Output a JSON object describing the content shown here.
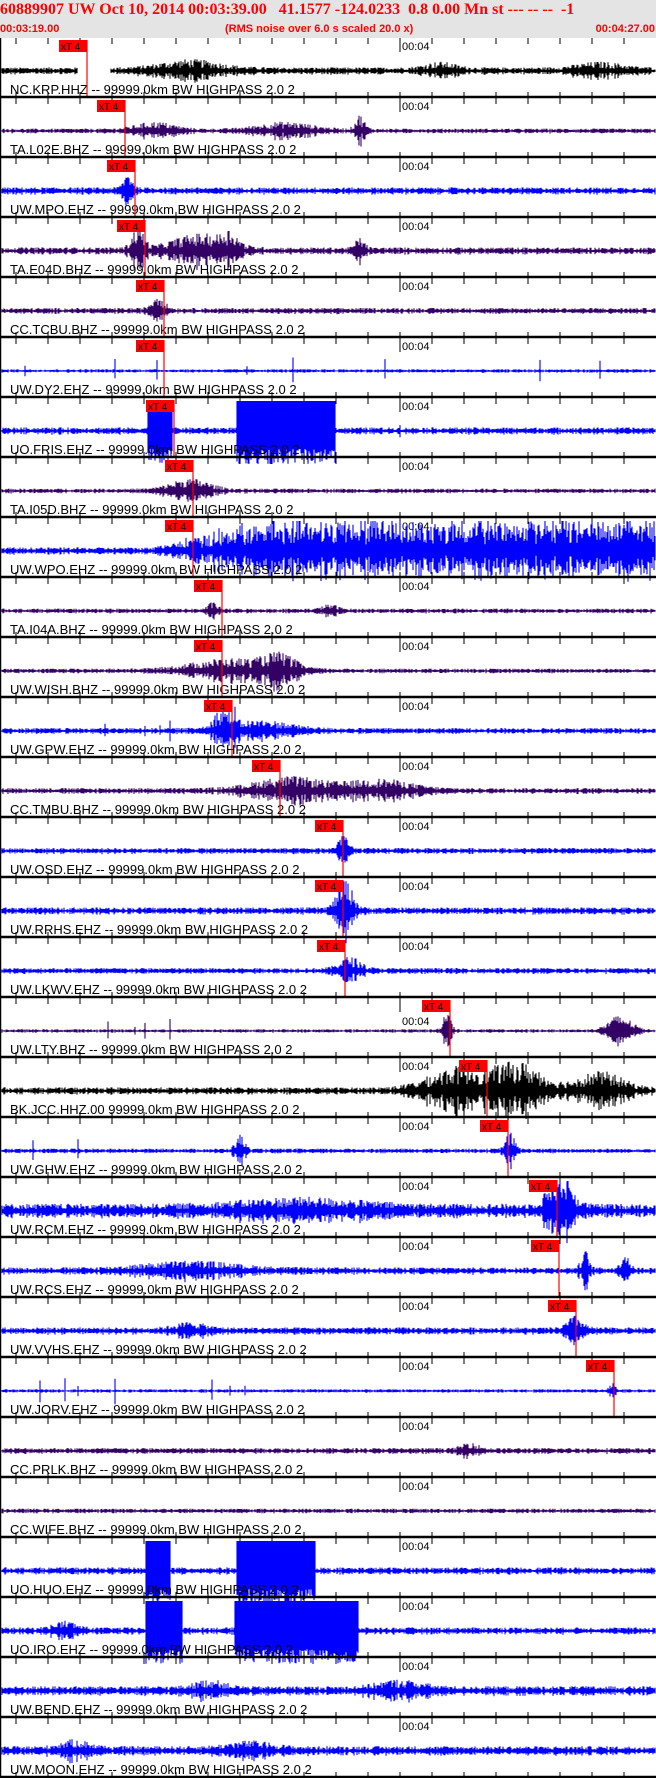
{
  "header": {
    "title": "60889907 UW Oct 10, 2014 00:03:39.00   41.1577 -124.0233  0.8 0.00 Mn st --- -- --  -1",
    "start_time": "00:03:19.00",
    "noise_note": "(RMS noise over 6.0 s scaled 20.0 x)",
    "end_time": "00:04:27.00"
  },
  "time_tick_label": "00:04",
  "pick_label": "xT 4",
  "colors": {
    "blue": "#0000ff",
    "purple": "#330066",
    "black": "#000000",
    "pick": "#ff0000",
    "header_bg": "#e4e4e4"
  },
  "traces": [
    {
      "label": "NC.KRP.HHZ -- 99999.0km BW  HIGHPASS  2.0  2",
      "color": "black",
      "pick": true
    },
    {
      "label": "TA.L02E.BHZ -- 99999.0km BW  HIGHPASS  2.0  2",
      "color": "purple",
      "pick": true
    },
    {
      "label": "UW.MPO.EHZ -- 99999.0km BW  HIGHPASS  2.0  2",
      "color": "blue",
      "pick": true
    },
    {
      "label": "TA.E04D.BHZ -- 99999.0km BW  HIGHPASS  2.0  2",
      "color": "purple",
      "pick": true
    },
    {
      "label": "CC.TCBU.BHZ -- 99999.0km BW  HIGHPASS  2.0  2",
      "color": "purple",
      "pick": true
    },
    {
      "label": "UW.DY2.EHZ -- 99999.0km BW  HIGHPASS  2.0  2",
      "color": "blue",
      "pick": true
    },
    {
      "label": "UO.FRIS.EHZ -- 99999.0km BW  HIGHPASS  2.0  2",
      "color": "blue",
      "pick": true
    },
    {
      "label": "TA.I05D.BHZ -- 99999.0km BW  HIGHPASS  2.0  2",
      "color": "purple",
      "pick": true
    },
    {
      "label": "UW.WPO.EHZ -- 99999.0km BW  HIGHPASS  2.0  2",
      "color": "blue",
      "pick": true
    },
    {
      "label": "TA.I04A.BHZ -- 99999.0km BW  HIGHPASS  2.0  2",
      "color": "purple",
      "pick": true
    },
    {
      "label": "UW.WISH.BHZ -- 99999.0km BW  HIGHPASS  2.0  2",
      "color": "purple",
      "pick": true
    },
    {
      "label": "UW.GPW.EHZ -- 99999.0km BW  HIGHPASS  2.0  2",
      "color": "blue",
      "pick": true
    },
    {
      "label": "CC.TMBU.BHZ -- 99999.0km BW  HIGHPASS  2.0  2",
      "color": "purple",
      "pick": true
    },
    {
      "label": "UW.OSD.EHZ -- 99999.0km BW  HIGHPASS  2.0  2",
      "color": "blue",
      "pick": true
    },
    {
      "label": "UW.RRHS.EHZ -- 99999.0km BW  HIGHPASS  2.0  2",
      "color": "blue",
      "pick": true
    },
    {
      "label": "UW.LKWV.EHZ -- 99999.0km BW  HIGHPASS  2.0  2",
      "color": "blue",
      "pick": true
    },
    {
      "label": "UW.LTY.BHZ -- 99999.0km BW  HIGHPASS  2.0  2",
      "color": "purple",
      "pick": true
    },
    {
      "label": "BK.JCC.HHZ.00 99999.0km BW  HIGHPASS  2.0  2",
      "color": "black",
      "pick": true
    },
    {
      "label": "UW.GHW.EHZ -- 99999.0km BW  HIGHPASS  2.0  2",
      "color": "blue",
      "pick": true
    },
    {
      "label": "UW.RCM.EHZ -- 99999.0km BW  HIGHPASS  2.0  2",
      "color": "blue",
      "pick": true
    },
    {
      "label": "UW.RCS.EHZ -- 99999.0km BW  HIGHPASS  2.0  2",
      "color": "blue",
      "pick": true
    },
    {
      "label": "UW.VVHS.EHZ -- 99999.0km BW  HIGHPASS  2.0  2",
      "color": "blue",
      "pick": true
    },
    {
      "label": "UW.JORV.EHZ -- 99999.0km BW  HIGHPASS  2.0  2",
      "color": "blue",
      "pick": true
    },
    {
      "label": "CC.PRLK.BHZ -- 99999.0km BW  HIGHPASS  2.0  2",
      "color": "purple",
      "pick": false
    },
    {
      "label": "CC.WIFE.BHZ -- 99999.0km BW  HIGHPASS  2.0  2",
      "color": "purple",
      "pick": false
    },
    {
      "label": "UO.HUO.EHZ -- 99999.0km BW  HIGHPASS  2.0  2",
      "color": "blue",
      "pick": false
    },
    {
      "label": "UO.IRO.EHZ -- 99999.0km BW  HIGHPASS  2.0  2",
      "color": "blue",
      "pick": false
    },
    {
      "label": "UW.BEND.EHZ -- 99999.0km BW  HIGHPASS  2.0  2",
      "color": "blue",
      "pick": false
    },
    {
      "label": "UW.MOON.EHZ -- 99999.0km BW  HIGHPASS  2.0  2",
      "color": "blue",
      "pick": false
    }
  ]
}
